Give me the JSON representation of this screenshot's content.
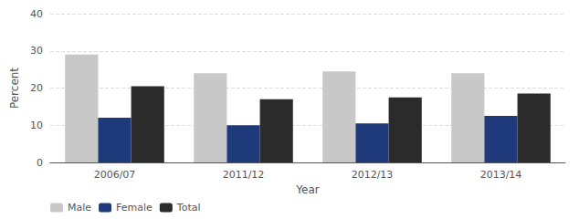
{
  "chart_data": {
    "type": "bar",
    "categories": [
      "2006/07",
      "2011/12",
      "2012/13",
      "2013/14"
    ],
    "series": [
      {
        "name": "Male",
        "color": "#c8c8c8",
        "values": [
          29.0,
          24.0,
          24.5,
          24.0
        ]
      },
      {
        "name": "Female",
        "color": "#1f3a7a",
        "values": [
          12.0,
          10.0,
          10.5,
          12.5
        ]
      },
      {
        "name": "Total",
        "color": "#2b2b2b",
        "values": [
          20.5,
          17.0,
          17.5,
          18.5
        ]
      }
    ],
    "xlabel": "Year",
    "ylabel": "Percent",
    "ylim": [
      0,
      40
    ],
    "yticks": [
      0,
      10,
      20,
      30,
      40
    ],
    "grid": true,
    "legend": "lower left"
  }
}
